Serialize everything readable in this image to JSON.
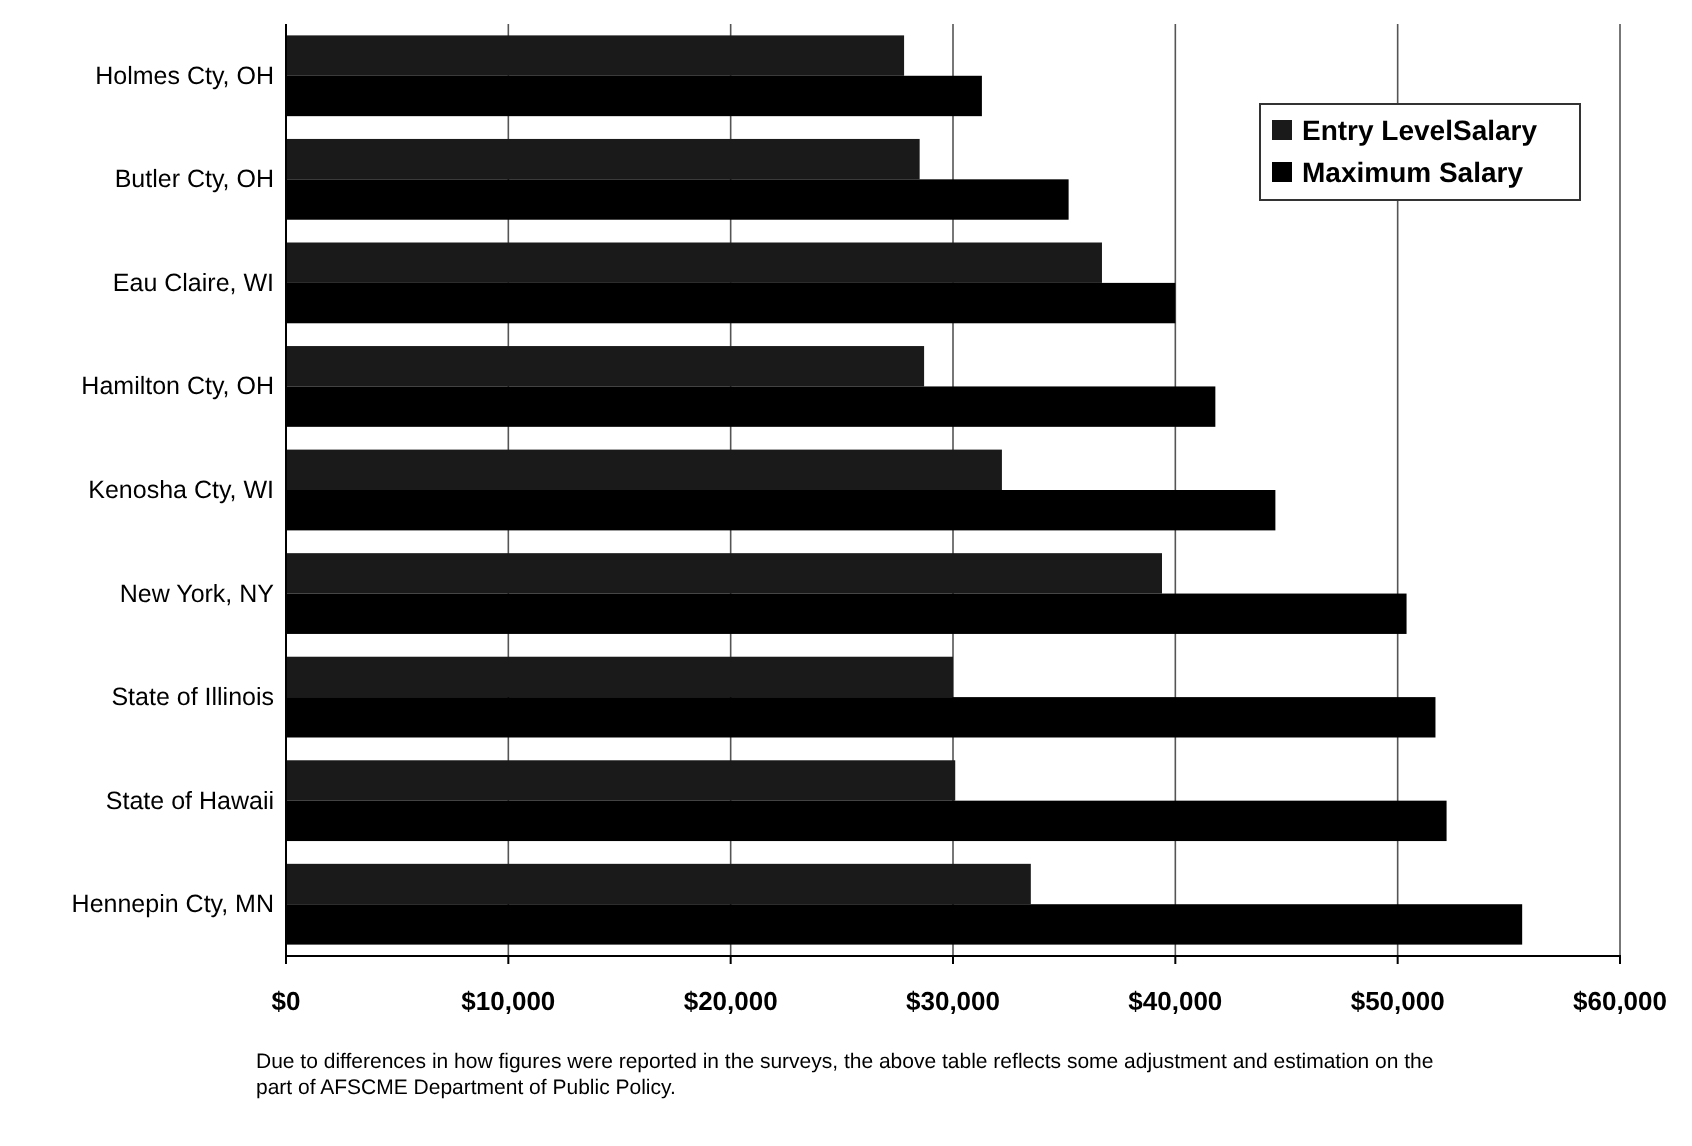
{
  "chart_data": {
    "type": "bar",
    "orientation": "horizontal",
    "categories": [
      "Holmes Cty, OH",
      "Butler Cty, OH",
      "Eau Claire, WI",
      "Hamilton Cty, OH",
      "Kenosha Cty, WI",
      "New York, NY",
      "State of Illinois",
      "State of Hawaii",
      "Hennepin Cty, MN"
    ],
    "series": [
      {
        "name": "Entry LevelSalary",
        "color": "#1a1a1a",
        "values": [
          27800,
          28500,
          36700,
          28700,
          32200,
          39400,
          30000,
          30100,
          33500
        ]
      },
      {
        "name": "Maximum Salary",
        "color": "#000000",
        "values": [
          31300,
          35200,
          40000,
          41800,
          44500,
          50400,
          51700,
          52200,
          55600
        ]
      }
    ],
    "xlim": [
      0,
      60000
    ],
    "xticks": [
      {
        "value": 0,
        "label": "$0"
      },
      {
        "value": 10000,
        "label": "$10,000"
      },
      {
        "value": 20000,
        "label": "$20,000"
      },
      {
        "value": 30000,
        "label": "$30,000"
      },
      {
        "value": 40000,
        "label": "$40,000"
      },
      {
        "value": 50000,
        "label": "$50,000"
      },
      {
        "value": 60000,
        "label": "$60,000"
      }
    ],
    "grid": "x",
    "legend": "top right",
    "annotations": [
      "Due to differences in how figures were reported in the surveys, the above table reflects some adjustment and estimation on the part of AFSCME Department of Public Policy."
    ]
  }
}
